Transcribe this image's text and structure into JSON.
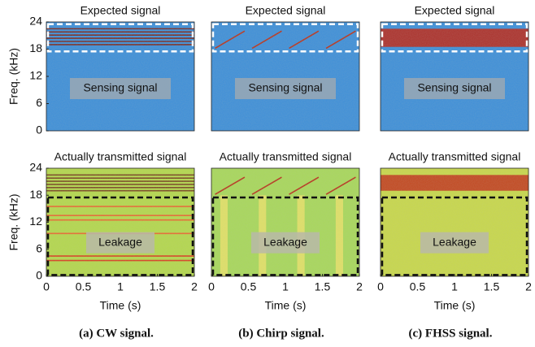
{
  "chart_data": [
    {
      "type": "spectrogram",
      "title": "Expected signal",
      "ylabel": "Freq. (kHz)",
      "xlim": [
        0,
        2
      ],
      "ylim": [
        0,
        24
      ],
      "yticks": [
        0,
        6,
        12,
        18,
        24
      ],
      "background": "#3d8fd8",
      "lines": [
        {
          "x": [
            0,
            2
          ],
          "y": [
            19,
            19
          ],
          "color": "#7a2a20"
        },
        {
          "x": [
            0,
            2
          ],
          "y": [
            19.7,
            19.7
          ],
          "color": "#7a2a20"
        },
        {
          "x": [
            0,
            2
          ],
          "y": [
            20.4,
            20.4
          ],
          "color": "#7a2a20"
        },
        {
          "x": [
            0,
            2
          ],
          "y": [
            21.1,
            21.1
          ],
          "color": "#7a2a20"
        },
        {
          "x": [
            0,
            2
          ],
          "y": [
            21.8,
            21.8
          ],
          "color": "#7a2a20"
        },
        {
          "x": [
            0,
            2
          ],
          "y": [
            22.5,
            22.5
          ],
          "color": "#7a2a20"
        }
      ],
      "bands": [],
      "region": {
        "label": "Sensing signal",
        "ylim": [
          17.5,
          23.5
        ],
        "color": "#ffffff"
      }
    },
    {
      "type": "spectrogram",
      "title": "Expected signal",
      "xlim": [
        0,
        2
      ],
      "ylim": [
        0,
        24
      ],
      "background": "#3d8fd8",
      "lines": [
        {
          "x": [
            0.05,
            0.45
          ],
          "y": [
            18.2,
            22
          ],
          "color": "#b8341c"
        },
        {
          "x": [
            0.55,
            0.95
          ],
          "y": [
            18.2,
            22
          ],
          "color": "#b8341c"
        },
        {
          "x": [
            1.05,
            1.45
          ],
          "y": [
            18.2,
            22
          ],
          "color": "#b8341c"
        },
        {
          "x": [
            1.55,
            1.95
          ],
          "y": [
            18.2,
            22
          ],
          "color": "#b8341c"
        }
      ],
      "bands": [],
      "region": {
        "label": "Sensing signal",
        "ylim": [
          17.5,
          23.5
        ],
        "color": "#ffffff"
      }
    },
    {
      "type": "spectrogram",
      "title": "Expected signal",
      "xlim": [
        0,
        2
      ],
      "ylim": [
        0,
        24
      ],
      "background": "#3d8fd8",
      "lines": [],
      "bands": [
        {
          "y": [
            18.5,
            22.5
          ],
          "color": "#b8281a"
        }
      ],
      "region": {
        "label": "Sensing signal",
        "ylim": [
          17.5,
          23.5
        ],
        "color": "#ffffff"
      }
    },
    {
      "type": "spectrogram",
      "title": "Actually transmitted signal",
      "xlabel": "Time (s)",
      "ylabel": "Freq. (kHz)",
      "xlim": [
        0,
        2
      ],
      "ylim": [
        0,
        24
      ],
      "xticks": [
        0,
        0.5,
        1,
        1.5,
        2
      ],
      "yticks": [
        0,
        6,
        12,
        18,
        24
      ],
      "background": "#b4d84c",
      "lines": [
        {
          "x": [
            0,
            2
          ],
          "y": [
            19,
            19
          ],
          "color": "#7a4a20"
        },
        {
          "x": [
            0,
            2
          ],
          "y": [
            19.7,
            19.7
          ],
          "color": "#7a4a20"
        },
        {
          "x": [
            0,
            2
          ],
          "y": [
            20.4,
            20.4
          ],
          "color": "#7a4a20"
        },
        {
          "x": [
            0,
            2
          ],
          "y": [
            21.1,
            21.1
          ],
          "color": "#7a4a20"
        },
        {
          "x": [
            0,
            2
          ],
          "y": [
            21.8,
            21.8
          ],
          "color": "#7a4a20"
        },
        {
          "x": [
            0,
            2
          ],
          "y": [
            22.5,
            22.5
          ],
          "color": "#7a4a20"
        },
        {
          "x": [
            0,
            2
          ],
          "y": [
            3.5,
            3.5
          ],
          "color": "#d84020"
        },
        {
          "x": [
            0,
            2
          ],
          "y": [
            4.5,
            4.5
          ],
          "color": "#d84020"
        },
        {
          "x": [
            0,
            2
          ],
          "y": [
            9.5,
            9.5
          ],
          "color": "#e86a30"
        },
        {
          "x": [
            0,
            2
          ],
          "y": [
            12.5,
            12.5
          ],
          "color": "#e86a30"
        },
        {
          "x": [
            0,
            2
          ],
          "y": [
            13.5,
            13.5
          ],
          "color": "#e86a30"
        },
        {
          "x": [
            0,
            2
          ],
          "y": [
            15.5,
            15.5
          ],
          "color": "#e86a30"
        }
      ],
      "bands": [],
      "region": {
        "label": "Leakage",
        "ylim": [
          0.3,
          17.5
        ],
        "color": "#111111"
      }
    },
    {
      "type": "spectrogram",
      "title": "Actually transmitted signal",
      "xlabel": "Time (s)",
      "xlim": [
        0,
        2
      ],
      "ylim": [
        0,
        24
      ],
      "xticks": [
        0,
        0.5,
        1,
        1.5,
        2
      ],
      "background": "#a8d85a",
      "lines": [
        {
          "x": [
            0.05,
            0.45
          ],
          "y": [
            18.2,
            22
          ],
          "color": "#b8341c"
        },
        {
          "x": [
            0.55,
            0.95
          ],
          "y": [
            18.2,
            22
          ],
          "color": "#b8341c"
        },
        {
          "x": [
            1.05,
            1.45
          ],
          "y": [
            18.2,
            22
          ],
          "color": "#b8341c"
        },
        {
          "x": [
            1.55,
            1.95
          ],
          "y": [
            18.2,
            22
          ],
          "color": "#b8341c"
        }
      ],
      "bands": [
        {
          "x": [
            0.12,
            0.22
          ],
          "y": [
            0,
            18
          ],
          "color": "#e6e266"
        },
        {
          "x": [
            0.64,
            0.74
          ],
          "y": [
            0,
            18
          ],
          "color": "#e6e266"
        },
        {
          "x": [
            1.16,
            1.26
          ],
          "y": [
            0,
            18
          ],
          "color": "#e6e266"
        },
        {
          "x": [
            1.68,
            1.78
          ],
          "y": [
            0,
            18
          ],
          "color": "#e6e266"
        }
      ],
      "region": {
        "label": "Leakage",
        "ylim": [
          0.3,
          17.5
        ],
        "color": "#111111"
      }
    },
    {
      "type": "spectrogram",
      "title": "Actually transmitted signal",
      "xlabel": "Time (s)",
      "xlim": [
        0,
        2
      ],
      "ylim": [
        0,
        24
      ],
      "xticks": [
        0,
        0.5,
        1,
        1.5,
        2
      ],
      "background": "#c8d84a",
      "lines": [],
      "bands": [
        {
          "y": [
            19,
            22.5
          ],
          "color": "#c23a1c"
        }
      ],
      "region": {
        "label": "Leakage",
        "ylim": [
          0.3,
          17.5
        ],
        "color": "#111111"
      }
    }
  ],
  "captions": [
    "(a) CW signal.",
    "(b) Chirp signal.",
    "(c) FHSS signal."
  ]
}
